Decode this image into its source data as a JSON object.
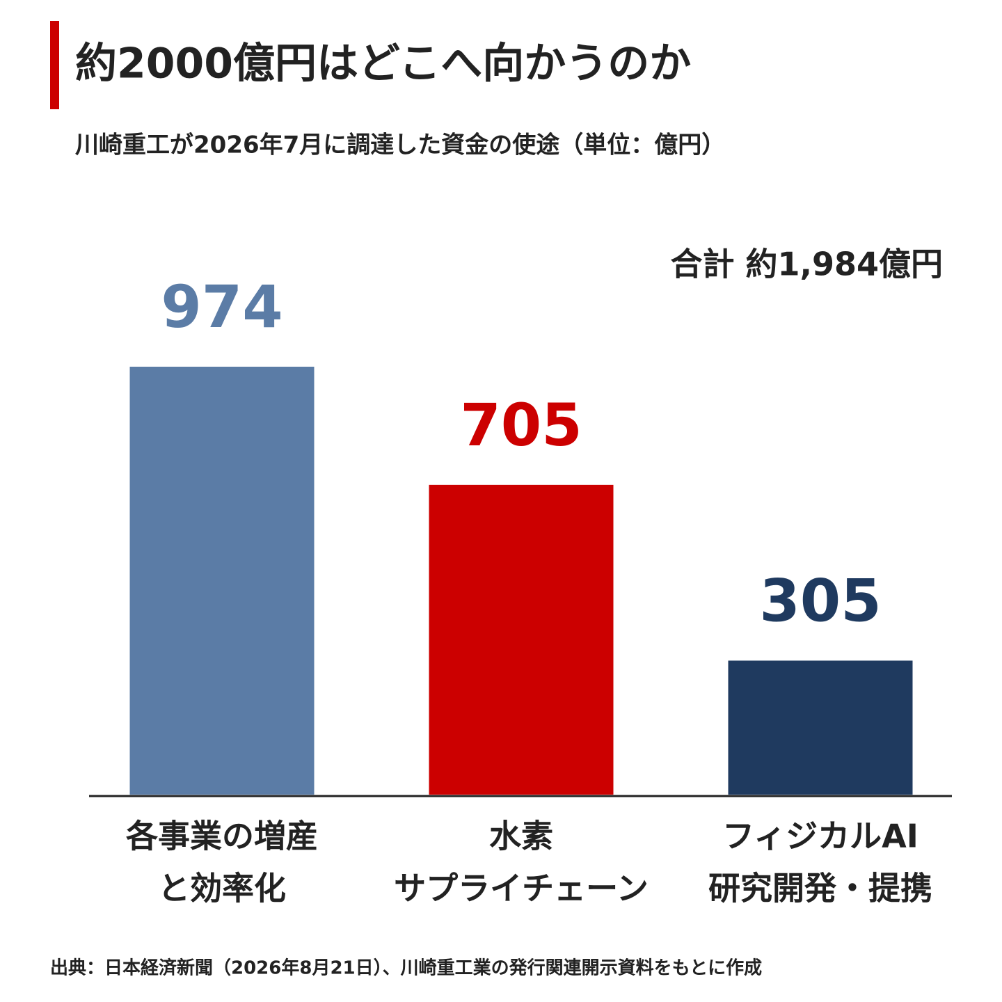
{
  "chart_data": {
    "type": "bar",
    "title": "約2000億円はどこへ向かうのか",
    "subtitle": "川崎重工が2026年7月に調達した資金の使途（単位：億円）",
    "annotation": "合計 約1,984億円",
    "categories": [
      [
        "各事業の増産",
        "と効率化"
      ],
      [
        "水素",
        "サプライチェーン"
      ],
      [
        "フィジカルAI",
        "研究開発・提携"
      ]
    ],
    "values": [
      974,
      705,
      305
    ],
    "colors": [
      "#5b7ca6",
      "#cc0000",
      "#1f3a5f"
    ],
    "source": "出典：日本経済新聞（2026年8月21日）、川崎重工業の発行関連開示資料をもとに作成"
  }
}
